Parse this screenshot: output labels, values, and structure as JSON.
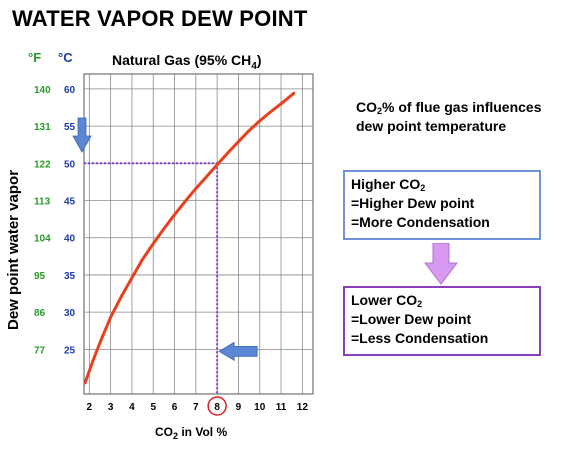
{
  "page": {
    "title": "WATER VAPOR DEW POINT"
  },
  "chart_data": {
    "type": "line",
    "title": "Natural Gas (95% CH",
    "title_sub": "4",
    "title_end": ")",
    "xlabel_pre": "CO",
    "xlabel_sub": "2",
    "xlabel_post": " in Vol %",
    "ylabel": "Dew point water vapor",
    "left_unit_label": "°F",
    "right_unit_label": "°C",
    "x_ticks": [
      "2",
      "3",
      "4",
      "5",
      "6",
      "7",
      "8",
      "9",
      "10",
      "11",
      "12"
    ],
    "y_ticks_c": [
      "60",
      "55",
      "50",
      "45",
      "40",
      "35",
      "30",
      "25"
    ],
    "y_ticks_f": [
      "140",
      "131",
      "122",
      "113",
      "104",
      "95",
      "86",
      "77"
    ],
    "xlim": [
      1.75,
      12.5
    ],
    "ylim": [
      19,
      62
    ],
    "grid": true,
    "series": [
      {
        "x": [
          1.8,
          2.2,
          2.6,
          3.0,
          3.5,
          4.0,
          4.5,
          5.0,
          5.5,
          6.0,
          6.5,
          7.0,
          7.5,
          8.0,
          8.5,
          9.0,
          9.5,
          10.0,
          10.5,
          11.0,
          11.6
        ],
        "y": [
          20.5,
          23.7,
          26.6,
          29.3,
          32.1,
          34.6,
          37.1,
          39.2,
          41.2,
          43.1,
          44.9,
          46.6,
          48.2,
          49.8,
          51.4,
          52.9,
          54.4,
          55.7,
          56.9,
          58.0,
          59.4
        ]
      }
    ],
    "reading": {
      "x": 8,
      "y": 50
    },
    "colors": {
      "curve": "#e8401c",
      "guide": "#8a3fd0",
      "circle": "#e02020",
      "arrow": "#5b86d4",
      "grid": "#888888"
    }
  },
  "annotations": {
    "note_pre": "CO",
    "note_sub": "2",
    "note_post": "% of flue gas influences dew point temperature",
    "higher": {
      "line1_pre": "Higher CO",
      "line1_sub": "2",
      "line2": "=Higher Dew point",
      "line3": "=More Condensation"
    },
    "lower": {
      "line1_pre": "Lower CO",
      "line1_sub": "2",
      "line2": "=Lower Dew point",
      "line3": "=Less Condensation"
    },
    "colors": {
      "higher_border": "#6f93d8",
      "lower_border": "#8a3fb8",
      "down_arrow": "#d79af0"
    }
  }
}
